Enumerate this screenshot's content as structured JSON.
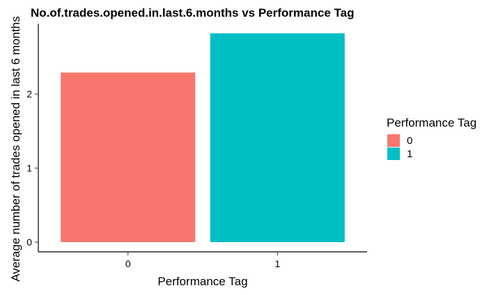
{
  "chart_data": {
    "type": "bar",
    "title": "No.of.trades.opened.in.last.6.months vs Performance Tag",
    "xlabel": "Performance Tag",
    "ylabel": "Average number of trades opened in last 6 months",
    "categories": [
      "0",
      "1"
    ],
    "values": [
      2.29,
      2.82
    ],
    "colors": [
      "#F8766D",
      "#00BFC4"
    ],
    "ylim": [
      0,
      2.95
    ],
    "yticks": [
      0,
      1,
      2
    ],
    "grid": false,
    "legend": {
      "title": "Performance Tag",
      "placement": "right",
      "entries": [
        {
          "label": "0",
          "color": "#F8766D"
        },
        {
          "label": "1",
          "color": "#00BFC4"
        }
      ]
    }
  }
}
